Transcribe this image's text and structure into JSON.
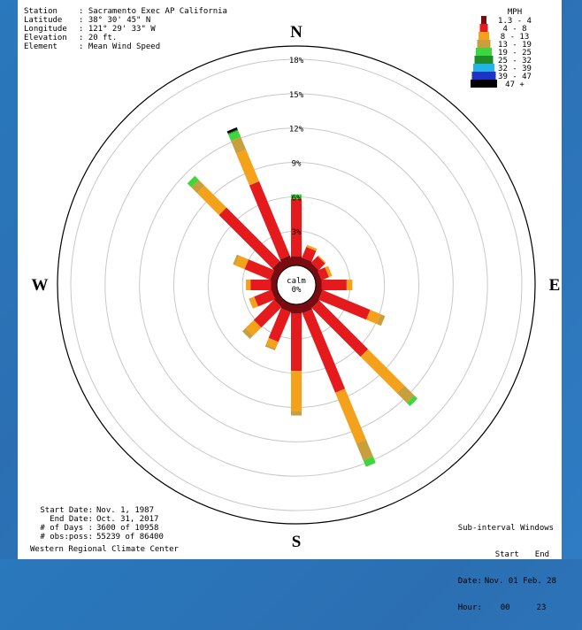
{
  "station": {
    "rows": [
      {
        "key": "Station",
        "value": "Sacramento Exec AP California"
      },
      {
        "key": "Latitude",
        "value": "38° 30' 45\" N"
      },
      {
        "key": "Longitude",
        "value": "121° 29' 33\" W"
      },
      {
        "key": "Elevation",
        "value": "20 ft."
      },
      {
        "key": "Element",
        "value": "Mean Wind Speed"
      }
    ]
  },
  "period": {
    "rows": [
      {
        "key": "Start Date:",
        "value": "Nov. 1, 1987"
      },
      {
        "key": "End Date:",
        "value": "Oct. 31, 2017"
      },
      {
        "key": "# of Days :",
        "value": "3600 of 10958"
      },
      {
        "key": "# obs:poss:",
        "value": "55239 of 86400"
      }
    ],
    "credit": "Western Regional Climate Center"
  },
  "subinterval": {
    "title": "Sub-interval Windows",
    "col_start": "Start",
    "col_end": "End",
    "date_label": "Date:",
    "date_start": "Nov. 01",
    "date_end": "Feb. 28",
    "hour_label": "Hour:",
    "hour_start": "00",
    "hour_end": "23"
  },
  "chart_data": {
    "type": "wind-rose",
    "title": "",
    "directions": [
      "N",
      "E",
      "S",
      "W"
    ],
    "calm_label": "calm",
    "calm_value": "0%",
    "rings": [
      "3%",
      "6%",
      "9%",
      "12%",
      "15%",
      "18%"
    ],
    "rmax": 18,
    "legend_title": "MPH",
    "bins": [
      {
        "label": "1.3 - 4",
        "color": "#7a0b10"
      },
      {
        "label": "4 - 8",
        "color": "#e41a1c"
      },
      {
        "label": "8 - 13",
        "color": "#f4a11c"
      },
      {
        "label": "13 - 19",
        "color": "#c89f3c"
      },
      {
        "label": "19 - 25",
        "color": "#3dd63d"
      },
      {
        "label": "25 - 32",
        "color": "#1e8c2a"
      },
      {
        "label": "32 - 39",
        "color": "#22b4e8"
      },
      {
        "label": "39 - 47",
        "color": "#1e32c8"
      },
      {
        "label": "47 +",
        "color": "#000000"
      }
    ],
    "sectors": [
      {
        "dir": 0,
        "segs": [
          0.8,
          5.0,
          0.0,
          0.0,
          0.4
        ]
      },
      {
        "dir": 22.5,
        "segs": [
          0.7,
          1.0,
          0.2,
          0.0,
          0.0
        ]
      },
      {
        "dir": 45,
        "segs": [
          0.6,
          0.8,
          0.1,
          0.0,
          0.0
        ]
      },
      {
        "dir": 67.5,
        "segs": [
          0.5,
          0.7,
          0.3,
          0.0,
          0.0
        ]
      },
      {
        "dir": 90,
        "segs": [
          0.5,
          2.2,
          0.5,
          0.0,
          0.0
        ]
      },
      {
        "dir": 112.5,
        "segs": [
          0.6,
          4.5,
          1.0,
          0.4,
          0.0
        ]
      },
      {
        "dir": 135,
        "segs": [
          0.7,
          6.0,
          4.5,
          1.2,
          0.4
        ]
      },
      {
        "dir": 157.5,
        "segs": [
          0.8,
          7.5,
          4.8,
          1.6,
          0.6
        ]
      },
      {
        "dir": 180,
        "segs": [
          0.8,
          5.0,
          3.5,
          0.4,
          0.0
        ]
      },
      {
        "dir": 202.5,
        "segs": [
          0.7,
          2.8,
          0.6,
          0.2,
          0.0
        ]
      },
      {
        "dir": 225,
        "segs": [
          0.6,
          2.5,
          1.0,
          0.4,
          0.0
        ]
      },
      {
        "dir": 247.5,
        "segs": [
          0.5,
          1.6,
          0.5,
          0.0,
          0.0
        ]
      },
      {
        "dir": 270,
        "segs": [
          0.5,
          1.8,
          0.4,
          0.0,
          0.0
        ]
      },
      {
        "dir": 292.5,
        "segs": [
          0.6,
          2.4,
          0.9,
          0.2,
          0.0
        ]
      },
      {
        "dir": 315,
        "segs": [
          0.8,
          6.6,
          2.7,
          0.7,
          0.5
        ]
      },
      {
        "dir": 337.5,
        "segs": [
          0.9,
          7.0,
          3.0,
          1.2,
          0.6,
          0.1,
          0.0,
          0.0,
          0.2
        ]
      }
    ]
  }
}
